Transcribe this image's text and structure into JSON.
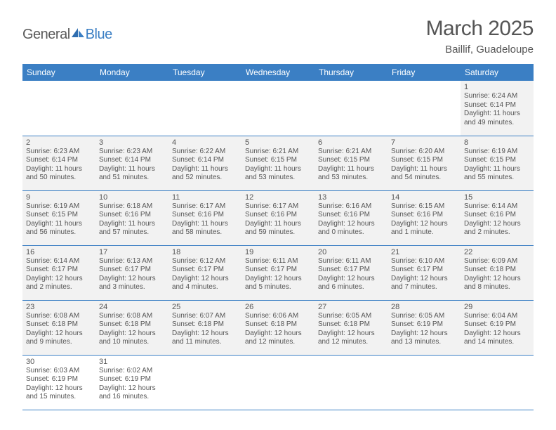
{
  "brand": {
    "part1": "General",
    "part2": "Blue"
  },
  "title": "March 2025",
  "location": "Baillif, Guadeloupe",
  "colors": {
    "header_bg": "#3b7fc4",
    "header_text": "#ffffff",
    "cell_bg": "#f2f2f2",
    "border": "#3b7fc4",
    "text": "#555555",
    "page_bg": "#ffffff"
  },
  "typography": {
    "title_fontsize": 30,
    "location_fontsize": 15,
    "dayheader_fontsize": 12,
    "daynum_fontsize": 11,
    "detail_fontsize": 10
  },
  "day_headers": [
    "Sunday",
    "Monday",
    "Tuesday",
    "Wednesday",
    "Thursday",
    "Friday",
    "Saturday"
  ],
  "weeks": [
    [
      null,
      null,
      null,
      null,
      null,
      null,
      {
        "n": "1",
        "sr": "Sunrise: 6:24 AM",
        "ss": "Sunset: 6:14 PM",
        "dl": "Daylight: 11 hours and 49 minutes."
      }
    ],
    [
      {
        "n": "2",
        "sr": "Sunrise: 6:23 AM",
        "ss": "Sunset: 6:14 PM",
        "dl": "Daylight: 11 hours and 50 minutes."
      },
      {
        "n": "3",
        "sr": "Sunrise: 6:23 AM",
        "ss": "Sunset: 6:14 PM",
        "dl": "Daylight: 11 hours and 51 minutes."
      },
      {
        "n": "4",
        "sr": "Sunrise: 6:22 AM",
        "ss": "Sunset: 6:14 PM",
        "dl": "Daylight: 11 hours and 52 minutes."
      },
      {
        "n": "5",
        "sr": "Sunrise: 6:21 AM",
        "ss": "Sunset: 6:15 PM",
        "dl": "Daylight: 11 hours and 53 minutes."
      },
      {
        "n": "6",
        "sr": "Sunrise: 6:21 AM",
        "ss": "Sunset: 6:15 PM",
        "dl": "Daylight: 11 hours and 53 minutes."
      },
      {
        "n": "7",
        "sr": "Sunrise: 6:20 AM",
        "ss": "Sunset: 6:15 PM",
        "dl": "Daylight: 11 hours and 54 minutes."
      },
      {
        "n": "8",
        "sr": "Sunrise: 6:19 AM",
        "ss": "Sunset: 6:15 PM",
        "dl": "Daylight: 11 hours and 55 minutes."
      }
    ],
    [
      {
        "n": "9",
        "sr": "Sunrise: 6:19 AM",
        "ss": "Sunset: 6:15 PM",
        "dl": "Daylight: 11 hours and 56 minutes."
      },
      {
        "n": "10",
        "sr": "Sunrise: 6:18 AM",
        "ss": "Sunset: 6:16 PM",
        "dl": "Daylight: 11 hours and 57 minutes."
      },
      {
        "n": "11",
        "sr": "Sunrise: 6:17 AM",
        "ss": "Sunset: 6:16 PM",
        "dl": "Daylight: 11 hours and 58 minutes."
      },
      {
        "n": "12",
        "sr": "Sunrise: 6:17 AM",
        "ss": "Sunset: 6:16 PM",
        "dl": "Daylight: 11 hours and 59 minutes."
      },
      {
        "n": "13",
        "sr": "Sunrise: 6:16 AM",
        "ss": "Sunset: 6:16 PM",
        "dl": "Daylight: 12 hours and 0 minutes."
      },
      {
        "n": "14",
        "sr": "Sunrise: 6:15 AM",
        "ss": "Sunset: 6:16 PM",
        "dl": "Daylight: 12 hours and 1 minute."
      },
      {
        "n": "15",
        "sr": "Sunrise: 6:14 AM",
        "ss": "Sunset: 6:16 PM",
        "dl": "Daylight: 12 hours and 2 minutes."
      }
    ],
    [
      {
        "n": "16",
        "sr": "Sunrise: 6:14 AM",
        "ss": "Sunset: 6:17 PM",
        "dl": "Daylight: 12 hours and 2 minutes."
      },
      {
        "n": "17",
        "sr": "Sunrise: 6:13 AM",
        "ss": "Sunset: 6:17 PM",
        "dl": "Daylight: 12 hours and 3 minutes."
      },
      {
        "n": "18",
        "sr": "Sunrise: 6:12 AM",
        "ss": "Sunset: 6:17 PM",
        "dl": "Daylight: 12 hours and 4 minutes."
      },
      {
        "n": "19",
        "sr": "Sunrise: 6:11 AM",
        "ss": "Sunset: 6:17 PM",
        "dl": "Daylight: 12 hours and 5 minutes."
      },
      {
        "n": "20",
        "sr": "Sunrise: 6:11 AM",
        "ss": "Sunset: 6:17 PM",
        "dl": "Daylight: 12 hours and 6 minutes."
      },
      {
        "n": "21",
        "sr": "Sunrise: 6:10 AM",
        "ss": "Sunset: 6:17 PM",
        "dl": "Daylight: 12 hours and 7 minutes."
      },
      {
        "n": "22",
        "sr": "Sunrise: 6:09 AM",
        "ss": "Sunset: 6:18 PM",
        "dl": "Daylight: 12 hours and 8 minutes."
      }
    ],
    [
      {
        "n": "23",
        "sr": "Sunrise: 6:08 AM",
        "ss": "Sunset: 6:18 PM",
        "dl": "Daylight: 12 hours and 9 minutes."
      },
      {
        "n": "24",
        "sr": "Sunrise: 6:08 AM",
        "ss": "Sunset: 6:18 PM",
        "dl": "Daylight: 12 hours and 10 minutes."
      },
      {
        "n": "25",
        "sr": "Sunrise: 6:07 AM",
        "ss": "Sunset: 6:18 PM",
        "dl": "Daylight: 12 hours and 11 minutes."
      },
      {
        "n": "26",
        "sr": "Sunrise: 6:06 AM",
        "ss": "Sunset: 6:18 PM",
        "dl": "Daylight: 12 hours and 12 minutes."
      },
      {
        "n": "27",
        "sr": "Sunrise: 6:05 AM",
        "ss": "Sunset: 6:18 PM",
        "dl": "Daylight: 12 hours and 12 minutes."
      },
      {
        "n": "28",
        "sr": "Sunrise: 6:05 AM",
        "ss": "Sunset: 6:19 PM",
        "dl": "Daylight: 12 hours and 13 minutes."
      },
      {
        "n": "29",
        "sr": "Sunrise: 6:04 AM",
        "ss": "Sunset: 6:19 PM",
        "dl": "Daylight: 12 hours and 14 minutes."
      }
    ],
    [
      {
        "n": "30",
        "sr": "Sunrise: 6:03 AM",
        "ss": "Sunset: 6:19 PM",
        "dl": "Daylight: 12 hours and 15 minutes."
      },
      {
        "n": "31",
        "sr": "Sunrise: 6:02 AM",
        "ss": "Sunset: 6:19 PM",
        "dl": "Daylight: 12 hours and 16 minutes."
      },
      null,
      null,
      null,
      null,
      null
    ]
  ]
}
